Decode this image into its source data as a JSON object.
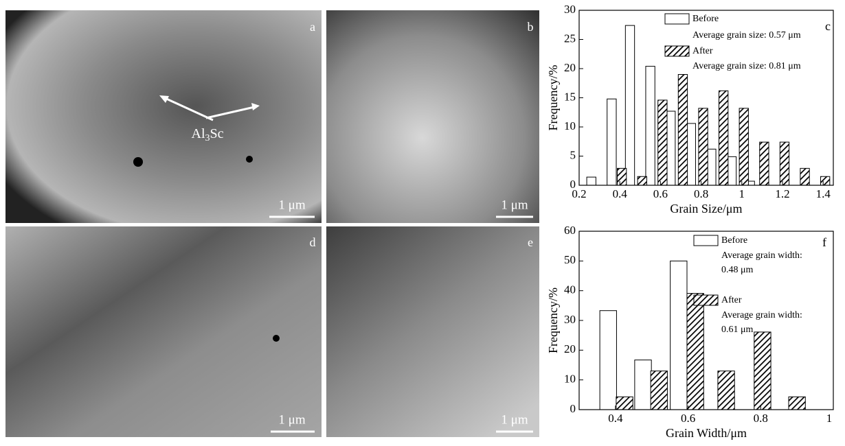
{
  "panels": [
    {
      "letter": "a",
      "scale": "1 μm",
      "annotation": [
        "Al",
        "3",
        "Sc"
      ]
    },
    {
      "letter": "b",
      "scale": "1 μm"
    },
    {
      "letter": "d",
      "scale": "1 μm"
    },
    {
      "letter": "e",
      "scale": "1 μm"
    }
  ],
  "chart_data": [
    {
      "type": "bar",
      "panel": "c",
      "xlabel": "Grain Size/μm",
      "ylabel": "Frequency/%",
      "xlim": [
        0.2,
        1.45
      ],
      "xticks": [
        0.2,
        0.4,
        0.6,
        0.8,
        1.0,
        1.2,
        1.4
      ],
      "ylim": [
        0,
        30
      ],
      "yticks": [
        0,
        5,
        10,
        15,
        20,
        25,
        30
      ],
      "bar_width": 0.045,
      "series": [
        {
          "name": "Before",
          "color": "#ffffff",
          "hatch": false,
          "x": [
            0.26,
            0.36,
            0.45,
            0.55,
            0.65,
            0.75,
            0.85,
            0.95,
            1.04
          ],
          "values": [
            1.4,
            14.8,
            27.4,
            20.4,
            12.7,
            10.6,
            6.2,
            4.9,
            0.7
          ]
        },
        {
          "name": "After",
          "color": "#000000",
          "hatch": true,
          "x": [
            0.41,
            0.51,
            0.61,
            0.71,
            0.81,
            0.91,
            1.01,
            1.11,
            1.21,
            1.31,
            1.41
          ],
          "values": [
            2.9,
            1.5,
            14.6,
            19,
            13.2,
            16.2,
            13.2,
            7.4,
            7.4,
            2.9,
            1.5
          ]
        }
      ],
      "annotations": [
        "Average grain size: 0.57 μm",
        "Average grain size: 0.81 μm"
      ]
    },
    {
      "type": "bar",
      "panel": "f",
      "xlabel": "Grain Width/μm",
      "ylabel": "Frequency/%",
      "xlim": [
        0.3,
        1.0
      ],
      "xticks": [
        0.4,
        0.6,
        0.8,
        1.0
      ],
      "ylim": [
        0,
        60
      ],
      "yticks": [
        0,
        10,
        20,
        30,
        40,
        50,
        60
      ],
      "bar_width": 0.046,
      "series": [
        {
          "name": "Before",
          "color": "#ffffff",
          "hatch": false,
          "x": [
            0.38,
            0.476,
            0.574
          ],
          "values": [
            33.3,
            16.7,
            50
          ]
        },
        {
          "name": "After",
          "color": "#000000",
          "hatch": true,
          "x": [
            0.425,
            0.52,
            0.62,
            0.705,
            0.805,
            0.9
          ],
          "values": [
            4.3,
            13,
            39.1,
            13,
            26.1,
            4.3
          ]
        }
      ],
      "annotations": [
        "Average grain width:",
        "0.48 μm",
        "Average grain width:",
        "0.61 μm"
      ]
    }
  ]
}
